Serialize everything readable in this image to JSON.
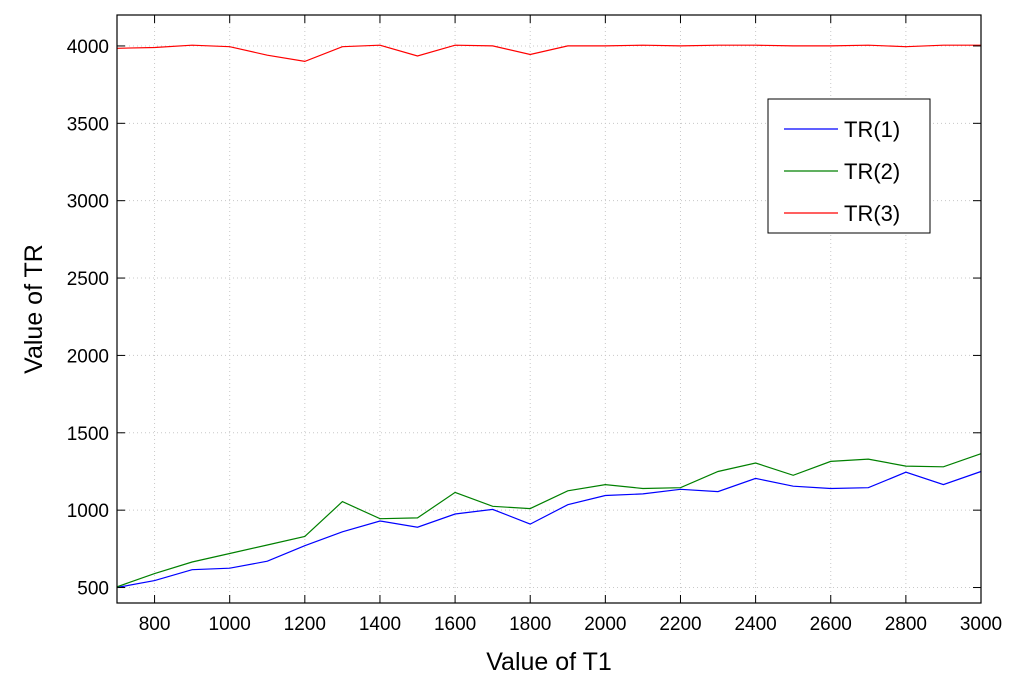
{
  "chart_data": {
    "type": "line",
    "title": "",
    "xlabel": "Value of T1",
    "ylabel": "Value of TR",
    "xlim": [
      700,
      3000
    ],
    "ylim": [
      400,
      4200
    ],
    "xticks": [
      800,
      1000,
      1200,
      1400,
      1600,
      1800,
      2000,
      2200,
      2400,
      2600,
      2800,
      3000
    ],
    "yticks": [
      500,
      1000,
      1500,
      2000,
      2500,
      3000,
      3500,
      4000
    ],
    "grid": true,
    "legend_position": "upper-right",
    "x": [
      700,
      800,
      900,
      1000,
      1100,
      1200,
      1300,
      1400,
      1500,
      1600,
      1700,
      1800,
      1900,
      2000,
      2100,
      2200,
      2300,
      2400,
      2500,
      2600,
      2700,
      2800,
      2900,
      3000
    ],
    "series": [
      {
        "name": "TR(1)",
        "color": "#0000ff",
        "values": [
          500,
          545,
          615,
          625,
          670,
          770,
          860,
          930,
          890,
          975,
          1005,
          910,
          1035,
          1095,
          1105,
          1135,
          1120,
          1205,
          1155,
          1140,
          1145,
          1245,
          1165,
          1250
        ]
      },
      {
        "name": "TR(2)",
        "color": "#008000",
        "values": [
          505,
          590,
          665,
          720,
          775,
          830,
          1055,
          945,
          950,
          1115,
          1025,
          1010,
          1125,
          1165,
          1140,
          1145,
          1250,
          1305,
          1225,
          1315,
          1330,
          1285,
          1280,
          1365
        ]
      },
      {
        "name": "TR(3)",
        "color": "#ff0000",
        "values": [
          3985,
          3990,
          4005,
          3995,
          3940,
          3900,
          3995,
          4005,
          3935,
          4005,
          4000,
          3945,
          4000,
          4000,
          4005,
          4000,
          4005,
          4005,
          4000,
          4000,
          4005,
          3995,
          4005,
          4005
        ]
      }
    ]
  }
}
